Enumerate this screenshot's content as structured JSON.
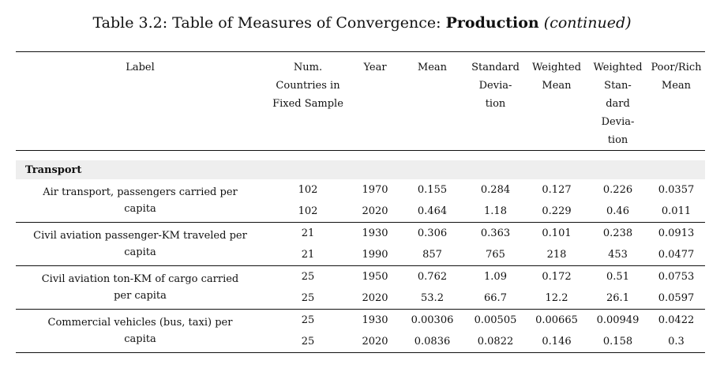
{
  "caption": {
    "prefix": "Table 3.2:  Table of Measures of Convergence:  ",
    "bold": "Production",
    "italic": "(continued)"
  },
  "headers": {
    "label": "Label",
    "num_countries": [
      "Num.",
      "Countries in",
      "Fixed Sample"
    ],
    "year": "Year",
    "mean": "Mean",
    "std": [
      "Standard",
      "Devia-",
      "tion"
    ],
    "wmean": [
      "Weighted",
      "Mean"
    ],
    "wstd": [
      "Weighted",
      "Stan-",
      "dard",
      "Devia-",
      "tion"
    ],
    "poorrich": [
      "Poor/Rich",
      "Mean"
    ]
  },
  "section": "Transport",
  "groups": [
    {
      "label": "Air transport, passengers carried per capita",
      "rows": [
        [
          "102",
          "1970",
          "0.155",
          "0.284",
          "0.127",
          "0.226",
          "0.0357"
        ],
        [
          "102",
          "2020",
          "0.464",
          "1.18",
          "0.229",
          "0.46",
          "0.011"
        ]
      ]
    },
    {
      "label": "Civil aviation passenger-KM traveled per capita",
      "rows": [
        [
          "21",
          "1930",
          "0.306",
          "0.363",
          "0.101",
          "0.238",
          "0.0913"
        ],
        [
          "21",
          "1990",
          "857",
          "765",
          "218",
          "453",
          "0.0477"
        ]
      ]
    },
    {
      "label": "Civil aviation ton-KM of cargo carried per capita",
      "rows": [
        [
          "25",
          "1950",
          "0.762",
          "1.09",
          "0.172",
          "0.51",
          "0.0753"
        ],
        [
          "25",
          "2020",
          "53.2",
          "66.7",
          "12.2",
          "26.1",
          "0.0597"
        ]
      ]
    },
    {
      "label": "Commercial vehicles (bus, taxi) per capita",
      "rows": [
        [
          "25",
          "1930",
          "0.00306",
          "0.00505",
          "0.00665",
          "0.00949",
          "0.0422"
        ],
        [
          "25",
          "2020",
          "0.0836",
          "0.0822",
          "0.146",
          "0.158",
          "0.3"
        ]
      ]
    }
  ]
}
